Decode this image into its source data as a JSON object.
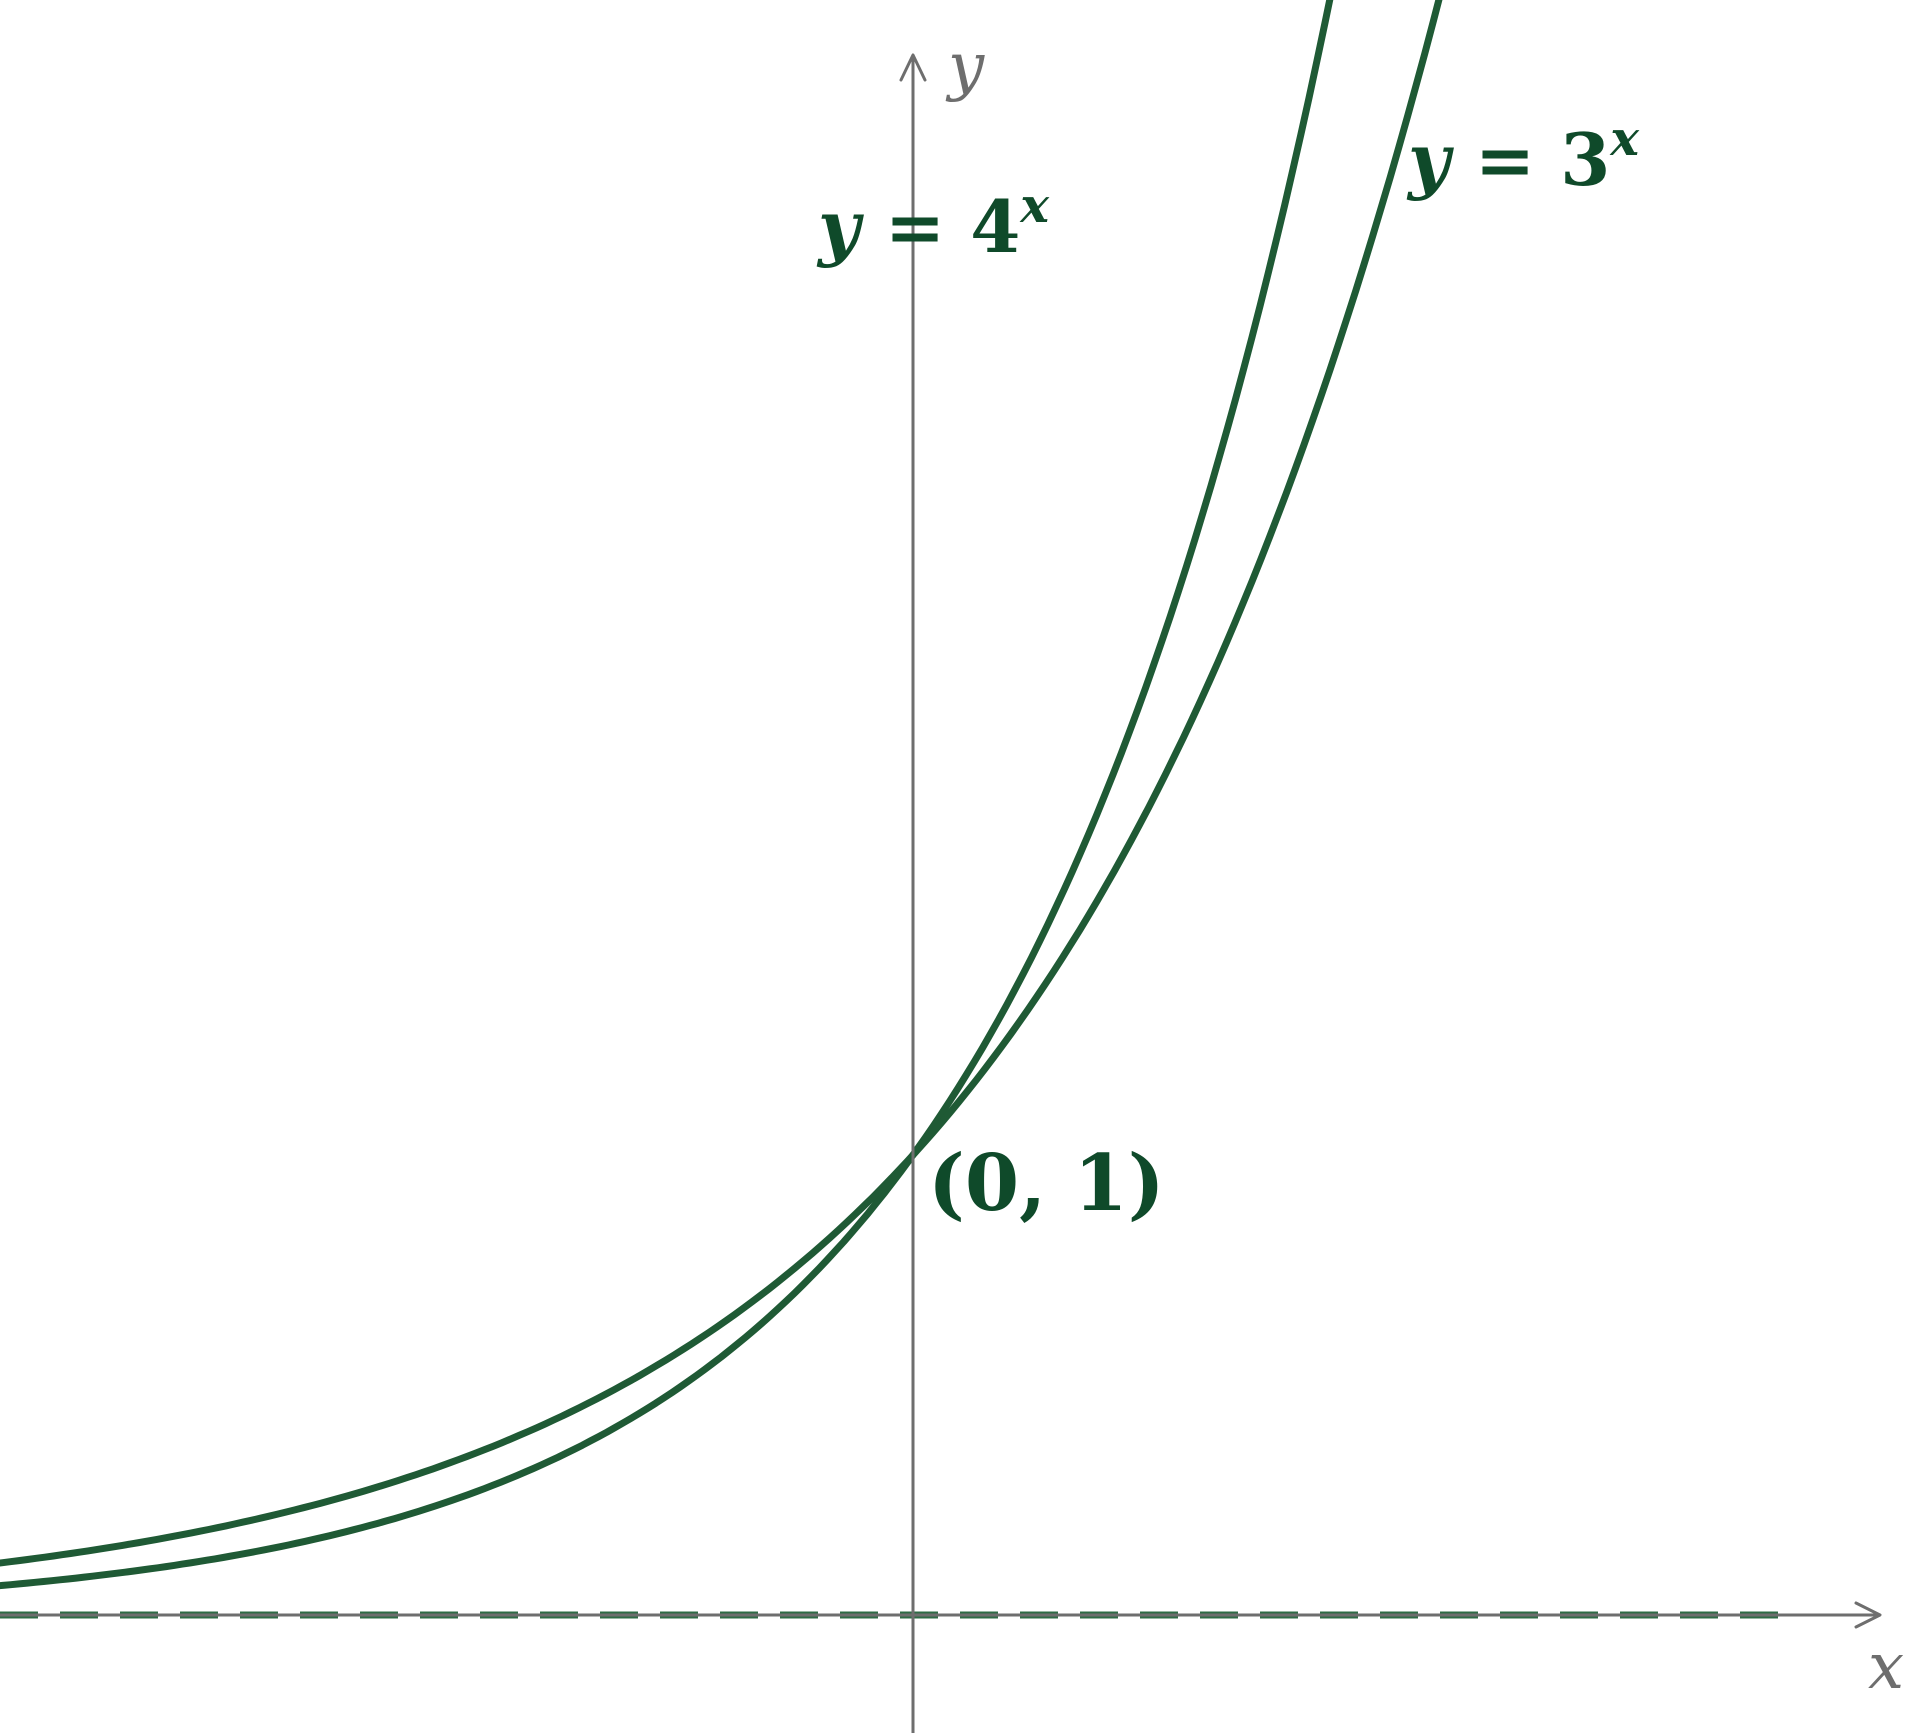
{
  "chart_data": {
    "type": "line",
    "x_axis_label": "x",
    "y_axis_label": "y",
    "xlim": [
      -5.6,
      6
    ],
    "ylim": [
      -0.8,
      9.2
    ],
    "series": [
      {
        "name": "y = 4^x",
        "base": 4,
        "label_var": "y",
        "label_eq": " = 4",
        "label_sup": "x",
        "x_range": [
          -5.6,
          1.5
        ]
      },
      {
        "name": "y = 3^x",
        "base": 3,
        "label_var": "y",
        "label_eq": " = 3",
        "label_sup": "x",
        "x_range": [
          -5.6,
          1.9
        ]
      }
    ],
    "asymptote": {
      "y": 0,
      "style": "dashed"
    },
    "point": {
      "x": 0,
      "y": 1,
      "label": "(0, 1)"
    },
    "colors": {
      "curve": "#1f5a35",
      "label": "#0f4a2a",
      "axis": "#6e6e6e"
    }
  }
}
